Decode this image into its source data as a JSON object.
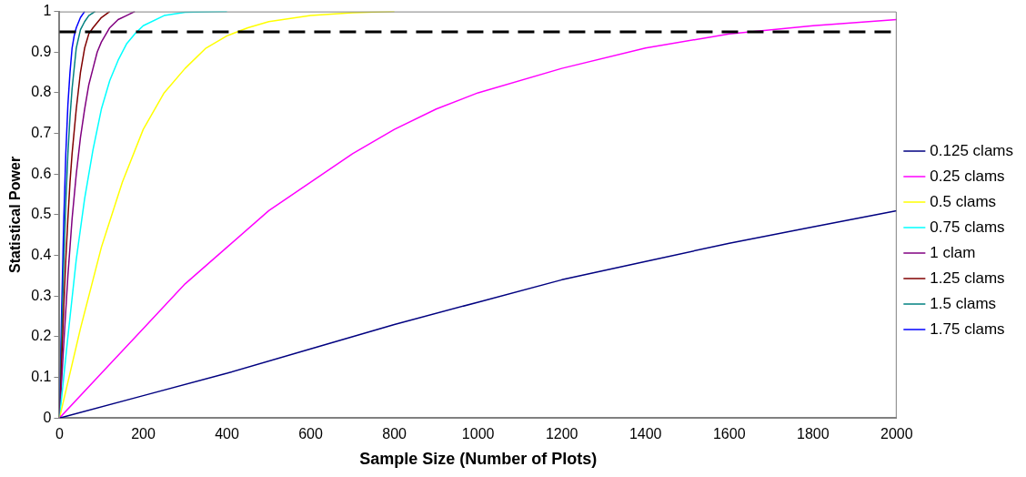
{
  "chart_data": {
    "type": "line",
    "xlabel": "Sample Size (Number of Plots)",
    "ylabel": "Statistical Power",
    "xlim": [
      0,
      2000
    ],
    "xticks": [
      0,
      200,
      400,
      600,
      800,
      1000,
      1200,
      1400,
      1600,
      1800,
      2000
    ],
    "ylim": [
      0,
      1
    ],
    "yticks": [
      0,
      0.1,
      0.2,
      0.3,
      0.4,
      0.5,
      0.6,
      0.7,
      0.8,
      0.9,
      1
    ],
    "grid": false,
    "legend": "right",
    "marker": "none",
    "line_style": "solid",
    "ref_lines": [
      {
        "axis": "y",
        "value": 0.95,
        "color": "#000000",
        "line_style": "dashed"
      }
    ],
    "series": [
      {
        "name": "0.125 clams",
        "color": "#000080",
        "x": [
          0,
          200,
          400,
          600,
          800,
          1000,
          1200,
          1400,
          1600,
          1800,
          2000
        ],
        "values": [
          0,
          0.055,
          0.11,
          0.17,
          0.23,
          0.285,
          0.34,
          0.385,
          0.43,
          0.47,
          0.51
        ]
      },
      {
        "name": "0.25 clams",
        "color": "#ff00ff",
        "x": [
          0,
          100,
          200,
          300,
          400,
          500,
          600,
          700,
          800,
          900,
          1000,
          1200,
          1400,
          1600,
          1800,
          2000
        ],
        "values": [
          0,
          0.11,
          0.22,
          0.33,
          0.42,
          0.51,
          0.58,
          0.65,
          0.71,
          0.76,
          0.8,
          0.86,
          0.91,
          0.945,
          0.965,
          0.98
        ]
      },
      {
        "name": "0.5 clams",
        "color": "#ffff00",
        "x": [
          0,
          50,
          100,
          150,
          200,
          250,
          300,
          350,
          400,
          450,
          500,
          600,
          700,
          800
        ],
        "values": [
          0,
          0.22,
          0.42,
          0.58,
          0.71,
          0.8,
          0.86,
          0.91,
          0.94,
          0.96,
          0.975,
          0.99,
          0.997,
          1
        ]
      },
      {
        "name": "0.75 clams",
        "color": "#00ffff",
        "x": [
          0,
          20,
          40,
          60,
          80,
          100,
          120,
          140,
          160,
          180,
          200,
          250,
          300,
          400
        ],
        "values": [
          0,
          0.2,
          0.39,
          0.54,
          0.66,
          0.76,
          0.83,
          0.88,
          0.92,
          0.945,
          0.965,
          0.99,
          0.998,
          1
        ]
      },
      {
        "name": "1 clam",
        "color": "#800080",
        "x": [
          0,
          10,
          20,
          30,
          40,
          50,
          60,
          70,
          80,
          90,
          100,
          120,
          140,
          160,
          180
        ],
        "values": [
          0,
          0.18,
          0.35,
          0.49,
          0.6,
          0.69,
          0.76,
          0.82,
          0.86,
          0.9,
          0.925,
          0.96,
          0.98,
          0.99,
          1
        ]
      },
      {
        "name": "1.25 clams",
        "color": "#800000",
        "x": [
          0,
          5,
          10,
          15,
          20,
          25,
          30,
          40,
          50,
          60,
          70,
          80,
          100,
          120
        ],
        "values": [
          0,
          0.14,
          0.27,
          0.39,
          0.49,
          0.58,
          0.65,
          0.76,
          0.85,
          0.91,
          0.945,
          0.96,
          0.985,
          1
        ]
      },
      {
        "name": "1.5 clams",
        "color": "#008080",
        "x": [
          0,
          5,
          10,
          15,
          20,
          25,
          30,
          40,
          50,
          60,
          70,
          85
        ],
        "values": [
          0,
          0.2,
          0.38,
          0.53,
          0.65,
          0.74,
          0.81,
          0.91,
          0.955,
          0.975,
          0.99,
          1
        ]
      },
      {
        "name": "1.75 clams",
        "color": "#0000ff",
        "x": [
          0,
          5,
          10,
          15,
          20,
          25,
          30,
          35,
          40,
          50,
          60
        ],
        "values": [
          0,
          0.26,
          0.48,
          0.65,
          0.77,
          0.85,
          0.91,
          0.94,
          0.96,
          0.985,
          1
        ]
      }
    ]
  }
}
